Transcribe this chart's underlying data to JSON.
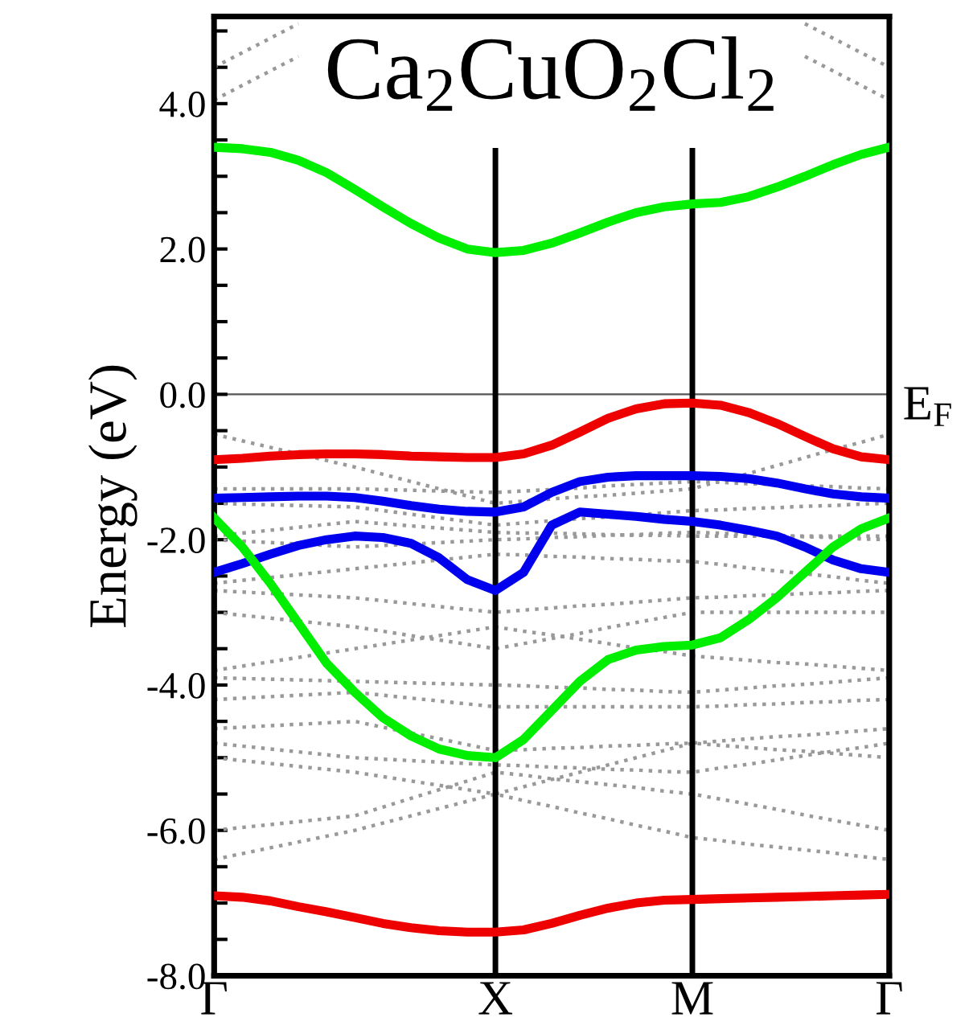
{
  "chart_data": {
    "type": "line",
    "title": "Ca$_{2}$CuO$_{2}$Cl$_{2}$",
    "ylabel": "Energy (eV)",
    "categories": [
      "Γ",
      null,
      null,
      null,
      null,
      null,
      null,
      null,
      null,
      null,
      "X",
      null,
      null,
      null,
      null,
      null,
      null,
      "M",
      null,
      null,
      null,
      null,
      null,
      null,
      "Γ"
    ],
    "ylim": [
      -8,
      5.2
    ],
    "yticks": [
      {
        "value": -8,
        "label": "-8.0"
      },
      {
        "value": -7.5,
        "label": null
      },
      {
        "value": -7,
        "label": null
      },
      {
        "value": -6.5,
        "label": null
      },
      {
        "value": -6,
        "label": "-6.0"
      },
      {
        "value": -5.5,
        "label": null
      },
      {
        "value": -5,
        "label": null
      },
      {
        "value": -4.5,
        "label": null
      },
      {
        "value": -4,
        "label": "-4.0"
      },
      {
        "value": -3.5,
        "label": null
      },
      {
        "value": -3,
        "label": null
      },
      {
        "value": -2.5,
        "label": null
      },
      {
        "value": -2,
        "label": "-2.0"
      },
      {
        "value": -1.5,
        "label": null
      },
      {
        "value": -1,
        "label": null
      },
      {
        "value": -0.5,
        "label": null
      },
      {
        "value": 0,
        "label": "0.0"
      },
      {
        "value": 0.5,
        "label": null
      },
      {
        "value": 1,
        "label": null
      },
      {
        "value": 1.5,
        "label": null
      },
      {
        "value": 2,
        "label": "2.0"
      },
      {
        "value": 2.5,
        "label": null
      },
      {
        "value": 3,
        "label": null
      },
      {
        "value": 3.5,
        "label": null
      },
      {
        "value": 4,
        "label": "4.0"
      },
      {
        "value": 4.5,
        "label": null
      },
      {
        "value": 5,
        "label": null
      }
    ],
    "ref_lines": [
      {
        "axis": "y",
        "value": 0,
        "label": "E$_{F}$",
        "color": "#555555"
      }
    ],
    "grid": "x",
    "series": [
      {
        "color": "#999999",
        "line_style": "dotted",
        "values": [
          4.05,
          4.25,
          4.45,
          4.65,
          null,
          null,
          null,
          null,
          null,
          null,
          null,
          null,
          null,
          null,
          null,
          null,
          null,
          null,
          null,
          null,
          null,
          null,
          null,
          null,
          null
        ]
      },
      {
        "color": "#999999",
        "line_style": "dotted",
        "values": [
          4.5,
          4.7,
          4.9,
          5.1,
          null,
          null,
          null,
          null,
          null,
          null,
          null,
          null,
          null,
          null,
          null,
          null,
          null,
          null,
          null,
          null,
          null,
          null,
          null,
          null,
          null
        ]
      },
      {
        "color": "#999999",
        "line_style": "dotted",
        "values": [
          null,
          null,
          null,
          null,
          null,
          null,
          null,
          null,
          null,
          null,
          null,
          null,
          null,
          null,
          null,
          null,
          null,
          null,
          null,
          null,
          null,
          4.65,
          4.45,
          4.25,
          4.05
        ]
      },
      {
        "color": "#999999",
        "line_style": "dotted",
        "values": [
          null,
          null,
          null,
          null,
          null,
          null,
          null,
          null,
          null,
          null,
          null,
          null,
          null,
          null,
          null,
          null,
          null,
          null,
          null,
          null,
          null,
          5.1,
          4.9,
          4.7,
          4.5
        ]
      },
      {
        "color": "#999999",
        "line_style": "dotted",
        "values": [
          -0.55,
          -0.64,
          -0.73,
          -0.82,
          -0.91,
          -1.0,
          -1.1,
          -1.2,
          -1.3,
          -1.4,
          -1.5,
          -1.47,
          -1.44,
          -1.41,
          -1.39,
          -1.36,
          -1.33,
          -1.3,
          -1.19,
          -1.09,
          -0.98,
          -0.87,
          -0.76,
          -0.66,
          -0.55
        ]
      },
      {
        "color": "#999999",
        "line_style": "dotted",
        "values": [
          -1.3,
          -1.3,
          -1.3,
          -1.3,
          -1.3,
          -1.3,
          -1.31,
          -1.32,
          -1.33,
          -1.34,
          -1.35,
          -1.33,
          -1.31,
          -1.29,
          -1.26,
          -1.24,
          -1.22,
          -1.2,
          -1.21,
          -1.23,
          -1.24,
          -1.26,
          -1.27,
          -1.29,
          -1.3
        ]
      },
      {
        "color": "#999999",
        "line_style": "dotted",
        "values": [
          -1.5,
          -1.51,
          -1.52,
          -1.53,
          -1.54,
          -1.55,
          -1.6,
          -1.65,
          -1.7,
          -1.75,
          -1.8,
          -1.77,
          -1.74,
          -1.71,
          -1.69,
          -1.66,
          -1.63,
          -1.6,
          -1.59,
          -1.57,
          -1.56,
          -1.54,
          -1.53,
          -1.51,
          -1.5
        ]
      },
      {
        "color": "#999999",
        "line_style": "dotted",
        "values": [
          -1.95,
          -1.91,
          -1.87,
          -1.83,
          -1.79,
          -1.75,
          -1.78,
          -1.81,
          -1.84,
          -1.87,
          -1.9,
          -1.91,
          -1.91,
          -1.92,
          -1.93,
          -1.94,
          -1.94,
          -1.95,
          -1.95,
          -1.95,
          -1.95,
          -1.95,
          -1.95,
          -1.95,
          -1.95
        ]
      },
      {
        "color": "#999999",
        "line_style": "dotted",
        "values": [
          -2.0,
          -2.02,
          -2.04,
          -2.06,
          -2.08,
          -2.1,
          -2.08,
          -2.06,
          -2.04,
          -2.02,
          -2.0,
          -1.99,
          -1.97,
          -1.96,
          -1.94,
          -1.93,
          -1.91,
          -1.9,
          -1.91,
          -1.93,
          -1.94,
          -1.96,
          -1.97,
          -1.99,
          -2.0
        ]
      },
      {
        "color": "#999999",
        "line_style": "dotted",
        "values": [
          -2.6,
          -2.56,
          -2.52,
          -2.48,
          -2.44,
          -2.4,
          -2.36,
          -2.32,
          -2.28,
          -2.24,
          -2.2,
          -2.21,
          -2.23,
          -2.24,
          -2.26,
          -2.27,
          -2.29,
          -2.3,
          -2.34,
          -2.39,
          -2.43,
          -2.47,
          -2.51,
          -2.56,
          -2.6
        ]
      },
      {
        "color": "#999999",
        "line_style": "dotted",
        "values": [
          -2.7,
          -2.72,
          -2.74,
          -2.76,
          -2.78,
          -2.8,
          -2.84,
          -2.88,
          -2.92,
          -2.96,
          -3.0,
          -2.97,
          -2.94,
          -2.91,
          -2.89,
          -2.86,
          -2.83,
          -2.8,
          -2.79,
          -2.77,
          -2.76,
          -2.74,
          -2.73,
          -2.71,
          -2.7
        ]
      },
      {
        "color": "#999999",
        "line_style": "dotted",
        "values": [
          -3.0,
          -3.04,
          -3.08,
          -3.12,
          -3.16,
          -3.2,
          -3.26,
          -3.32,
          -3.38,
          -3.44,
          -3.5,
          -3.43,
          -3.36,
          -3.29,
          -3.21,
          -3.14,
          -3.07,
          -3.0,
          -3.0,
          -3.0,
          -3.0,
          -3.0,
          -3.0,
          -3.0,
          -3.0
        ]
      },
      {
        "color": "#999999",
        "line_style": "dotted",
        "values": [
          -3.8,
          -3.74,
          -3.68,
          -3.62,
          -3.56,
          -3.5,
          -3.44,
          -3.38,
          -3.32,
          -3.26,
          -3.2,
          -3.26,
          -3.31,
          -3.37,
          -3.43,
          -3.49,
          -3.54,
          -3.6,
          -3.63,
          -3.66,
          -3.69,
          -3.71,
          -3.74,
          -3.77,
          -3.8
        ]
      },
      {
        "color": "#999999",
        "line_style": "dotted",
        "values": [
          -3.9,
          -3.91,
          -3.92,
          -3.93,
          -3.94,
          -3.95,
          -3.96,
          -3.97,
          -3.98,
          -3.99,
          -4.0,
          -4.01,
          -4.03,
          -4.04,
          -4.06,
          -4.07,
          -4.09,
          -4.1,
          -4.07,
          -4.04,
          -4.01,
          -3.99,
          -3.96,
          -3.93,
          -3.9
        ]
      },
      {
        "color": "#999999",
        "line_style": "dotted",
        "values": [
          -4.2,
          -4.18,
          -4.16,
          -4.14,
          -4.12,
          -4.1,
          -4.14,
          -4.18,
          -4.22,
          -4.26,
          -4.3,
          -4.3,
          -4.3,
          -4.3,
          -4.3,
          -4.3,
          -4.3,
          -4.3,
          -4.29,
          -4.27,
          -4.26,
          -4.24,
          -4.23,
          -4.21,
          -4.2
        ]
      },
      {
        "color": "#999999",
        "line_style": "dotted",
        "values": [
          -4.6,
          -4.58,
          -4.56,
          -4.54,
          -4.52,
          -4.5,
          -4.58,
          -4.66,
          -4.74,
          -4.82,
          -4.9,
          -4.89,
          -4.87,
          -4.86,
          -4.84,
          -4.83,
          -4.81,
          -4.8,
          -4.77,
          -4.74,
          -4.71,
          -4.69,
          -4.66,
          -4.63,
          -4.6
        ]
      },
      {
        "color": "#999999",
        "line_style": "dotted",
        "values": [
          -4.8,
          -4.84,
          -4.88,
          -4.92,
          -4.96,
          -5.0,
          -5.02,
          -5.04,
          -5.06,
          -5.08,
          -5.1,
          -5.11,
          -5.13,
          -5.14,
          -5.16,
          -5.17,
          -5.19,
          -5.2,
          -5.14,
          -5.09,
          -5.03,
          -4.97,
          -4.91,
          -4.86,
          -4.8
        ]
      },
      {
        "color": "#999999",
        "line_style": "dotted",
        "values": [
          -5.0,
          -5.04,
          -5.08,
          -5.12,
          -5.16,
          -5.2,
          -5.26,
          -5.32,
          -5.38,
          -5.44,
          -5.5,
          -5.4,
          -5.3,
          -5.2,
          -5.1,
          -5.0,
          -4.9,
          -4.8,
          -4.83,
          -4.86,
          -4.89,
          -4.91,
          -4.94,
          -4.97,
          -5.0
        ]
      },
      {
        "color": "#999999",
        "line_style": "dotted",
        "values": [
          -6.0,
          -5.96,
          -5.92,
          -5.88,
          -5.84,
          -5.8,
          -5.68,
          -5.56,
          -5.44,
          -5.32,
          -5.2,
          -5.24,
          -5.29,
          -5.33,
          -5.37,
          -5.41,
          -5.46,
          -5.5,
          -5.57,
          -5.64,
          -5.71,
          -5.79,
          -5.86,
          -5.93,
          -6.0
        ]
      },
      {
        "color": "#999999",
        "line_style": "dotted",
        "values": [
          -6.4,
          -6.32,
          -6.24,
          -6.16,
          -6.08,
          -6.0,
          -5.9,
          -5.8,
          -5.7,
          -5.6,
          -5.5,
          -5.59,
          -5.67,
          -5.76,
          -5.84,
          -5.93,
          -6.01,
          -6.1,
          -6.14,
          -6.19,
          -6.23,
          -6.27,
          -6.31,
          -6.36,
          -6.4
        ]
      },
      {
        "color": "#00ee00",
        "line_style": "solid",
        "values": [
          3.4,
          3.38,
          3.33,
          3.22,
          3.05,
          2.82,
          2.58,
          2.35,
          2.15,
          2.0,
          1.95,
          1.98,
          2.08,
          2.22,
          2.37,
          2.5,
          2.58,
          2.62,
          2.64,
          2.72,
          2.85,
          3.0,
          3.16,
          3.3,
          3.4
        ]
      },
      {
        "color": "#ee0000",
        "line_style": "solid",
        "values": [
          -0.9,
          -0.88,
          -0.85,
          -0.83,
          -0.82,
          -0.82,
          -0.83,
          -0.85,
          -0.86,
          -0.87,
          -0.87,
          -0.82,
          -0.7,
          -0.52,
          -0.33,
          -0.2,
          -0.13,
          -0.12,
          -0.15,
          -0.25,
          -0.4,
          -0.58,
          -0.75,
          -0.86,
          -0.9
        ]
      },
      {
        "color": "#0000ee",
        "line_style": "solid",
        "values": [
          -1.43,
          -1.42,
          -1.41,
          -1.4,
          -1.4,
          -1.42,
          -1.47,
          -1.53,
          -1.58,
          -1.61,
          -1.62,
          -1.55,
          -1.35,
          -1.2,
          -1.14,
          -1.12,
          -1.12,
          -1.12,
          -1.13,
          -1.16,
          -1.22,
          -1.3,
          -1.37,
          -1.41,
          -1.43
        ]
      },
      {
        "color": "#0000ee",
        "line_style": "solid",
        "values": [
          -2.45,
          -2.33,
          -2.2,
          -2.08,
          -2.0,
          -1.95,
          -1.97,
          -2.05,
          -2.25,
          -2.55,
          -2.7,
          -2.45,
          -1.8,
          -1.62,
          -1.65,
          -1.68,
          -1.72,
          -1.75,
          -1.8,
          -1.87,
          -1.95,
          -2.1,
          -2.28,
          -2.4,
          -2.45
        ]
      },
      {
        "color": "#00ee00",
        "line_style": "solid",
        "values": [
          -1.7,
          -2.1,
          -2.6,
          -3.15,
          -3.7,
          -4.1,
          -4.45,
          -4.7,
          -4.88,
          -4.97,
          -5.0,
          -4.75,
          -4.35,
          -3.95,
          -3.65,
          -3.52,
          -3.47,
          -3.45,
          -3.35,
          -3.1,
          -2.8,
          -2.45,
          -2.1,
          -1.85,
          -1.7
        ]
      },
      {
        "color": "#ee0000",
        "line_style": "solid",
        "values": [
          -6.9,
          -6.92,
          -6.97,
          -7.05,
          -7.12,
          -7.2,
          -7.28,
          -7.34,
          -7.38,
          -7.4,
          -7.4,
          -7.37,
          -7.28,
          -7.17,
          -7.07,
          -7.0,
          -6.96,
          -6.95,
          -6.94,
          -6.93,
          -6.92,
          -6.91,
          -6.9,
          -6.89,
          -6.88
        ]
      }
    ]
  }
}
